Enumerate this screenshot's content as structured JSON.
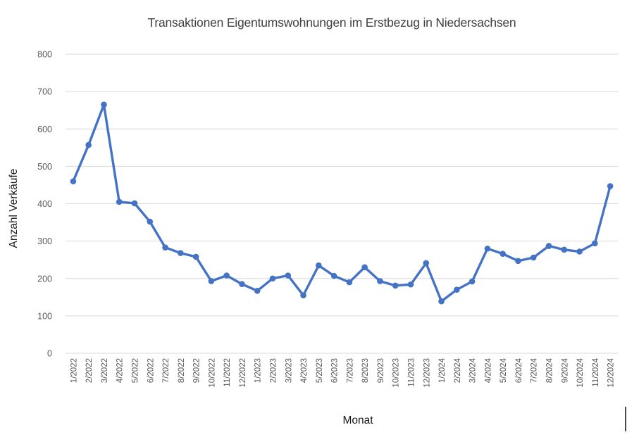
{
  "chart_data": {
    "type": "line",
    "title": "Transaktionen Eigentumswohnungen im Erstbezug in Niedersachsen",
    "xlabel": "Monat",
    "ylabel": "Anzahl Verkäufe",
    "categories": [
      "1/2022",
      "2/2022",
      "3/2022",
      "4/2022",
      "5/2022",
      "6/2022",
      "7/2022",
      "8/2022",
      "9/2022",
      "10/2022",
      "11/2022",
      "12/2022",
      "1/2023",
      "2/2023",
      "3/2023",
      "4/2023",
      "5/2023",
      "6/2023",
      "7/2023",
      "8/2023",
      "9/2023",
      "10/2023",
      "11/2023",
      "12/2023",
      "1/2024",
      "2/2024",
      "3/2024",
      "4/2024",
      "5/2024",
      "6/2024",
      "7/2024",
      "8/2024",
      "9/2024",
      "10/2024",
      "11/2024",
      "12/2024"
    ],
    "values": [
      460,
      557,
      665,
      405,
      401,
      352,
      283,
      268,
      258,
      193,
      208,
      185,
      167,
      200,
      208,
      155,
      235,
      207,
      190,
      230,
      193,
      181,
      184,
      241,
      139,
      170,
      192,
      280,
      266,
      247,
      256,
      287,
      277,
      272,
      294,
      447
    ],
    "ylim": [
      0,
      800
    ],
    "ytick_step": 100,
    "yticks": [
      0,
      100,
      200,
      300,
      400,
      500,
      600,
      700,
      800
    ],
    "grid": "horizontal",
    "legend": "none",
    "marker": "circle",
    "colors": {
      "line": "#4472C4",
      "grid": "#D9D9D9",
      "tick_text": "#595959",
      "title_text": "#404040",
      "axis_title_text": "#1a1a1a"
    }
  }
}
